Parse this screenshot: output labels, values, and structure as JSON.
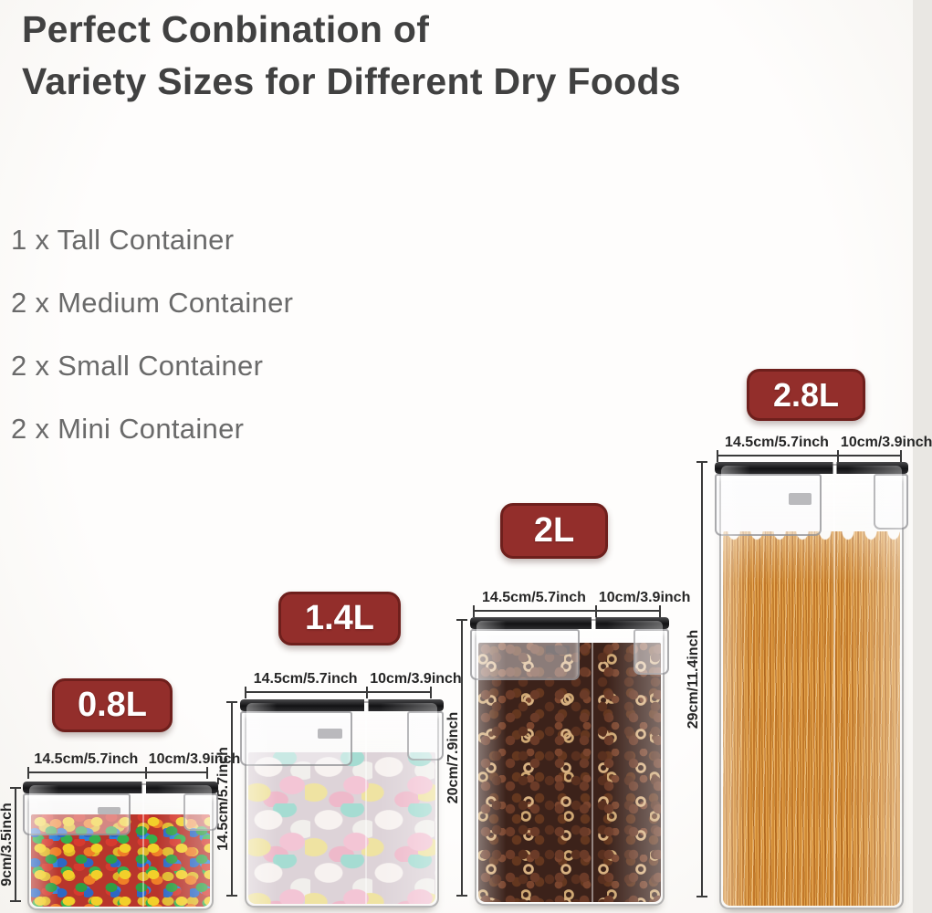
{
  "title": {
    "line1": "Perfect Conbination of",
    "line2": "Variety Sizes for Different Dry Foods"
  },
  "pack_list": {
    "items": [
      "1 x Tall Container",
      "2 x Medium Container",
      "2 x Small Container",
      "2 x Mini Container"
    ]
  },
  "containers": [
    {
      "capacity": "0.8L",
      "top_width": "14.5cm/5.7inch",
      "top_depth": "10cm/3.9inch",
      "height": "9cm/3.5inch",
      "contents": "rainbow candies"
    },
    {
      "capacity": "1.4L",
      "top_width": "14.5cm/5.7inch",
      "top_depth": "10cm/3.9inch",
      "height": "14.5cm/5.7inch",
      "contents": "marshmallows"
    },
    {
      "capacity": "2L",
      "top_width": "14.5cm/5.7inch",
      "top_depth": "10cm/3.9inch",
      "height": "20cm/7.9inch",
      "contents": "chocolate cereal"
    },
    {
      "capacity": "2.8L",
      "top_width": "14.5cm/5.7inch",
      "top_depth": "10cm/3.9inch",
      "height": "29cm/11.4inch",
      "contents": "spaghetti"
    }
  ],
  "colors": {
    "badge_bg": "#932e2b",
    "badge_border": "#6e1f1c",
    "badge_text": "#ffffff",
    "title_text": "#414141",
    "list_text": "#6a6a6a",
    "dimension_text": "#262626",
    "lid_black": "#1a1a1c"
  }
}
